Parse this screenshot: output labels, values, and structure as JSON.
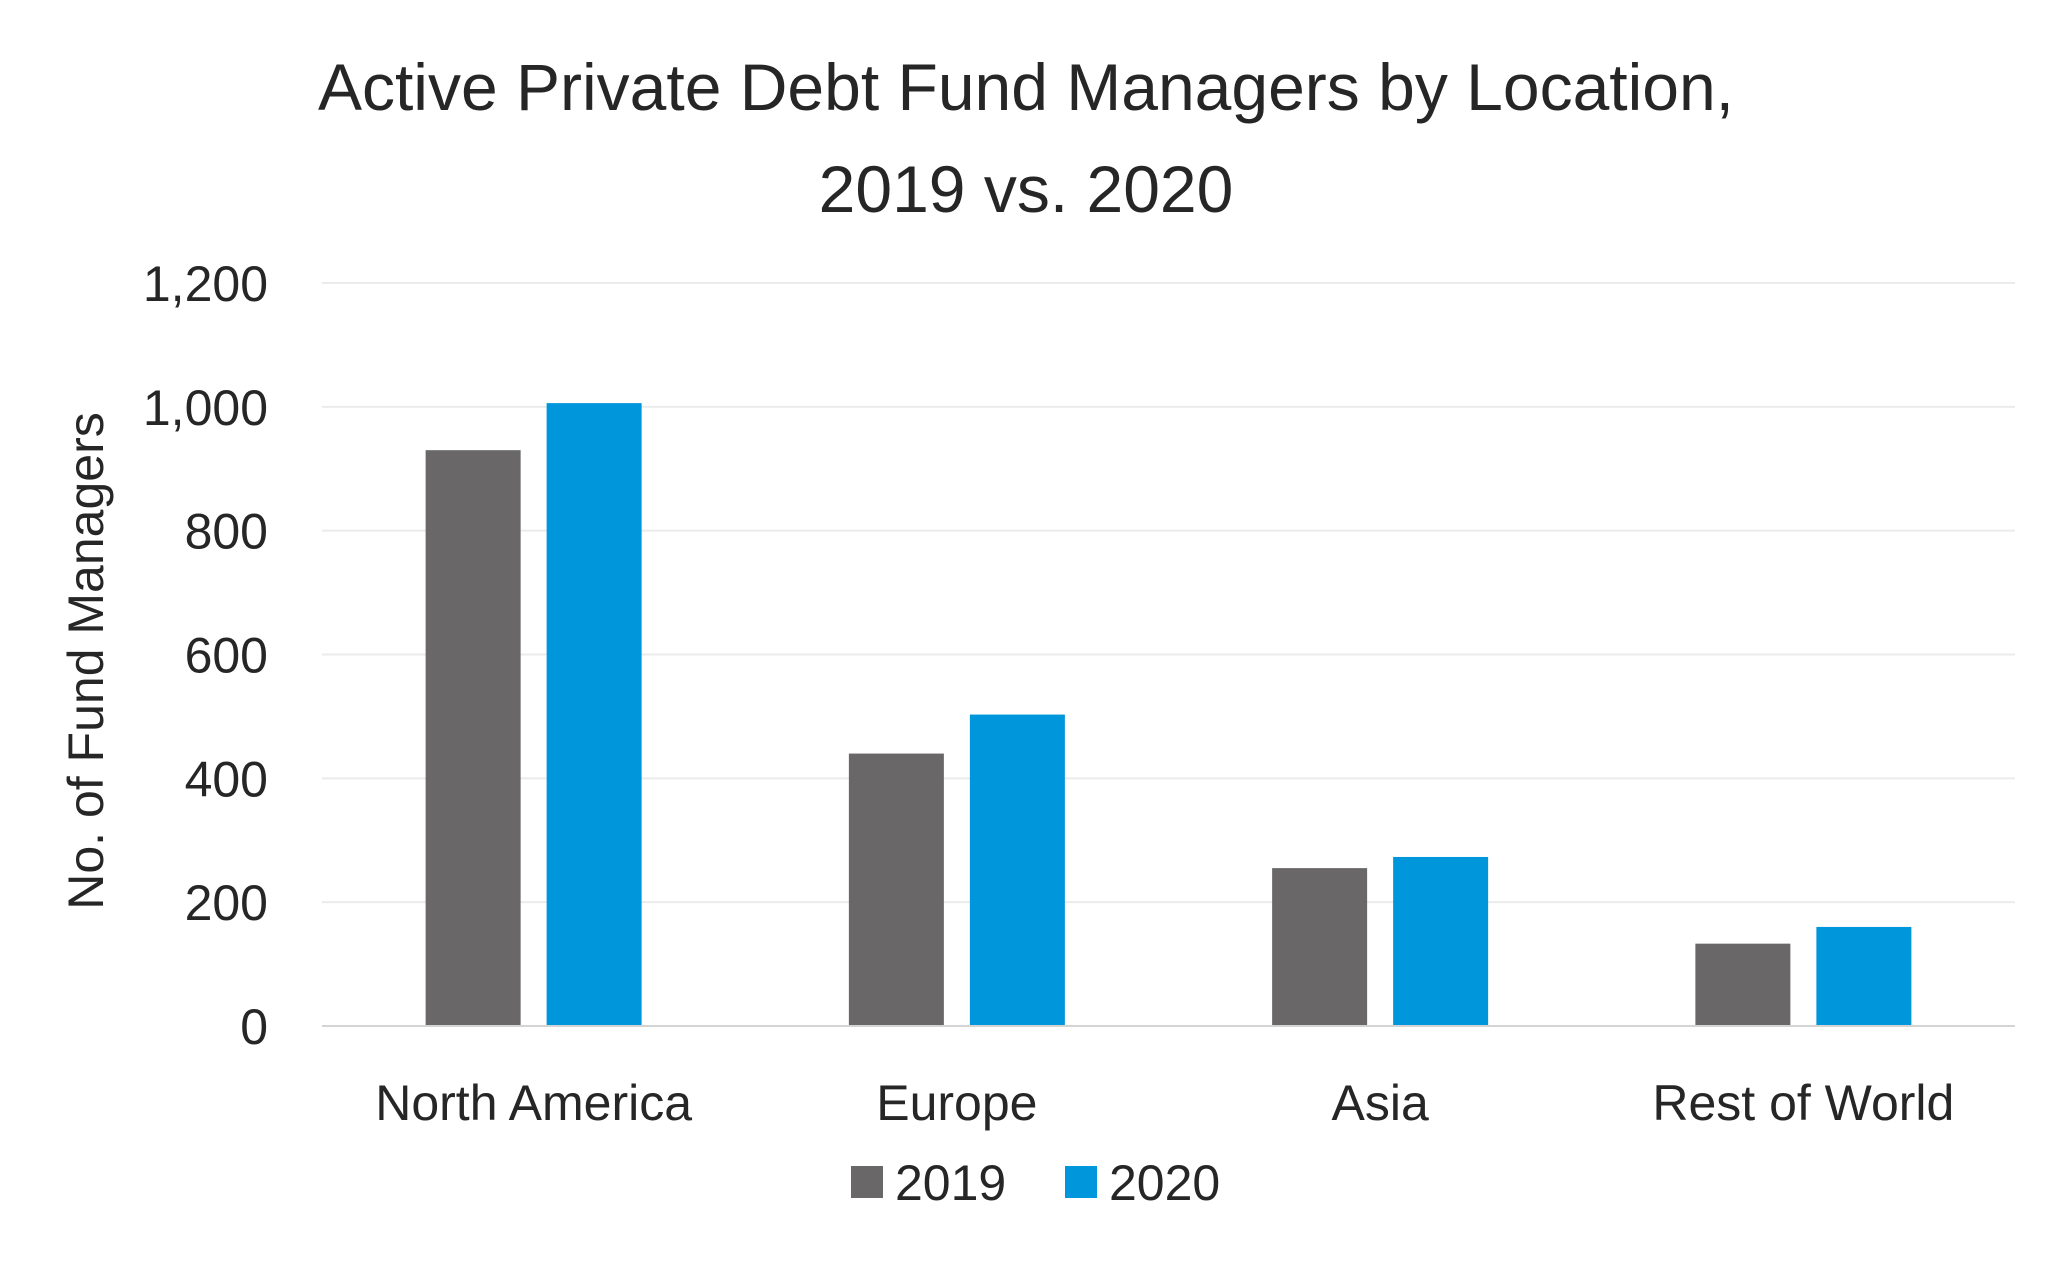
{
  "chart_data": {
    "type": "bar",
    "title_lines": [
      "Active Private Debt Fund Managers by Location,",
      "2019 vs. 2020"
    ],
    "ylabel": "No. of Fund Managers",
    "xlabel": "",
    "categories": [
      "North America",
      "Europe",
      "Asia",
      "Rest of World"
    ],
    "series": [
      {
        "name": "2019",
        "color": "#696767",
        "values": [
          930,
          440,
          255,
          133
        ]
      },
      {
        "name": "2020",
        "color": "#0096DB",
        "values": [
          1006,
          503,
          273,
          160
        ]
      }
    ],
    "ylim": [
      0,
      1200
    ],
    "yticks": [
      0,
      200,
      400,
      600,
      800,
      1000,
      1200
    ],
    "ytick_labels": [
      "0",
      "200",
      "400",
      "600",
      "800",
      "1,000",
      "1,200"
    ],
    "grid": true,
    "legend": "bottom-center"
  }
}
